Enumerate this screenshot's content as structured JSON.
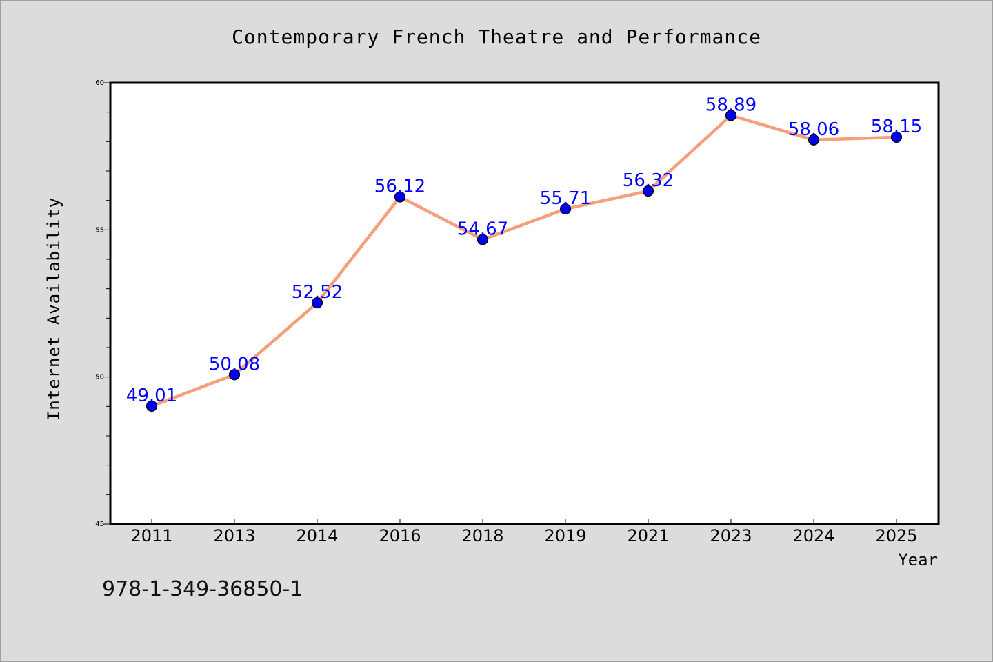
{
  "chart_data": {
    "type": "line",
    "title": "Contemporary French Theatre and Performance",
    "xlabel": "Year",
    "ylabel": "Internet Availability",
    "categories": [
      "2011",
      "2013",
      "2014",
      "2016",
      "2018",
      "2019",
      "2021",
      "2023",
      "2024",
      "2025"
    ],
    "series": [
      {
        "values": [
          49.01,
          50.08,
          52.52,
          56.12,
          54.67,
          55.71,
          56.32,
          58.89,
          58.06,
          58.15
        ],
        "data_labels": [
          "49.01",
          "50.08",
          "52.52",
          "56.12",
          "54.67",
          "55.71",
          "56.32",
          "58.89",
          "58.06",
          "58.15"
        ]
      }
    ],
    "ylim": [
      45,
      60
    ],
    "yticks": [
      "45",
      "50",
      "55",
      "60"
    ],
    "grid": false,
    "legend": "none",
    "colors": {
      "line": "#f4a07a",
      "marker": "#0000ee",
      "label": "#0000ff",
      "background": "#dcdcdc",
      "plot_bg": "#ffffff"
    },
    "annotation": "978-1-349-36850-1"
  }
}
